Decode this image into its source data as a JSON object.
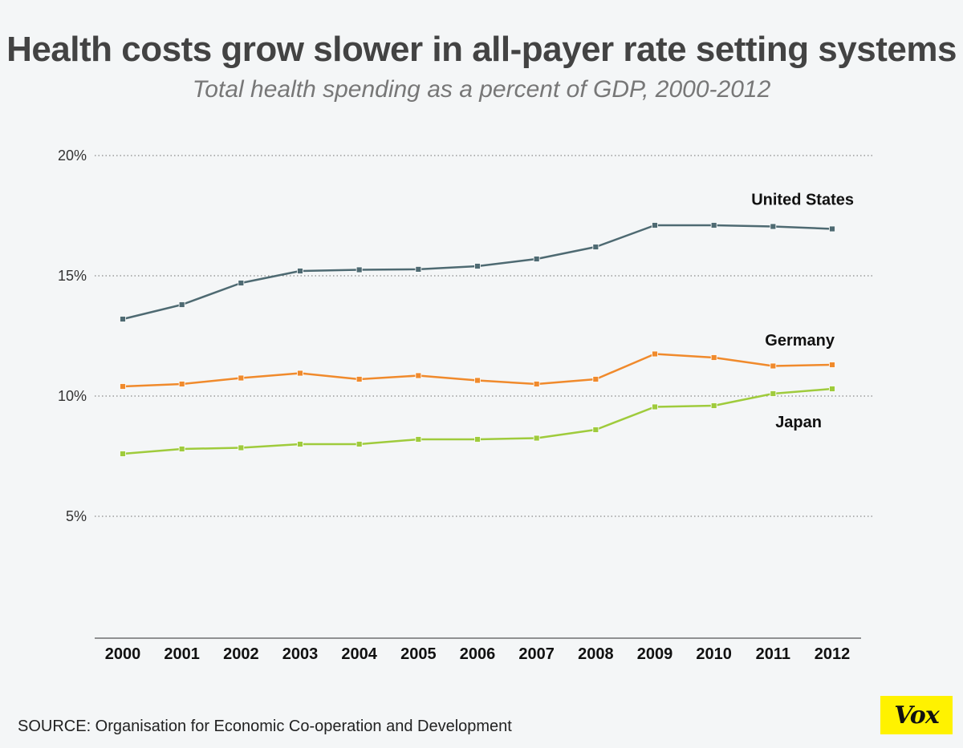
{
  "title": "Health costs grow slower in all-payer rate setting systems",
  "subtitle": "Total health spending as a percent of GDP, 2000-2012",
  "source": "SOURCE: Organisation for Economic Co-operation and Development",
  "logo": "Vox",
  "colors": {
    "background": "#f4f6f7",
    "united_states": "#4e6a72",
    "germany": "#f08a2c",
    "japan": "#9fcb3c",
    "grid": "#6e6e6e",
    "logo_background": "#fff200"
  },
  "chart_data": {
    "type": "line",
    "title": "Health costs grow slower in all-payer rate setting systems",
    "subtitle": "Total health spending as a percent of GDP, 2000-2012",
    "x": [
      "2000",
      "2001",
      "2002",
      "2003",
      "2004",
      "2005",
      "2006",
      "2007",
      "2008",
      "2009",
      "2010",
      "2011",
      "2012"
    ],
    "ylim": [
      0,
      20
    ],
    "yticks": [
      5,
      10,
      15,
      20
    ],
    "ytick_labels": [
      "5%",
      "10%",
      "15%",
      "20%"
    ],
    "grid": true,
    "legend": "direct labels at line ends",
    "series": [
      {
        "name": "United States",
        "color": "#4e6a72",
        "values": [
          13.2,
          13.8,
          14.7,
          15.2,
          15.25,
          15.27,
          15.4,
          15.7,
          16.2,
          17.1,
          17.1,
          17.05,
          16.95
        ]
      },
      {
        "name": "Germany",
        "color": "#f08a2c",
        "values": [
          10.4,
          10.5,
          10.75,
          10.95,
          10.7,
          10.85,
          10.65,
          10.5,
          10.7,
          11.75,
          11.6,
          11.25,
          11.3
        ]
      },
      {
        "name": "Japan",
        "color": "#9fcb3c",
        "values": [
          7.6,
          7.8,
          7.85,
          8.0,
          8.0,
          8.2,
          8.2,
          8.25,
          8.6,
          9.55,
          9.6,
          10.1,
          10.3
        ]
      }
    ]
  }
}
